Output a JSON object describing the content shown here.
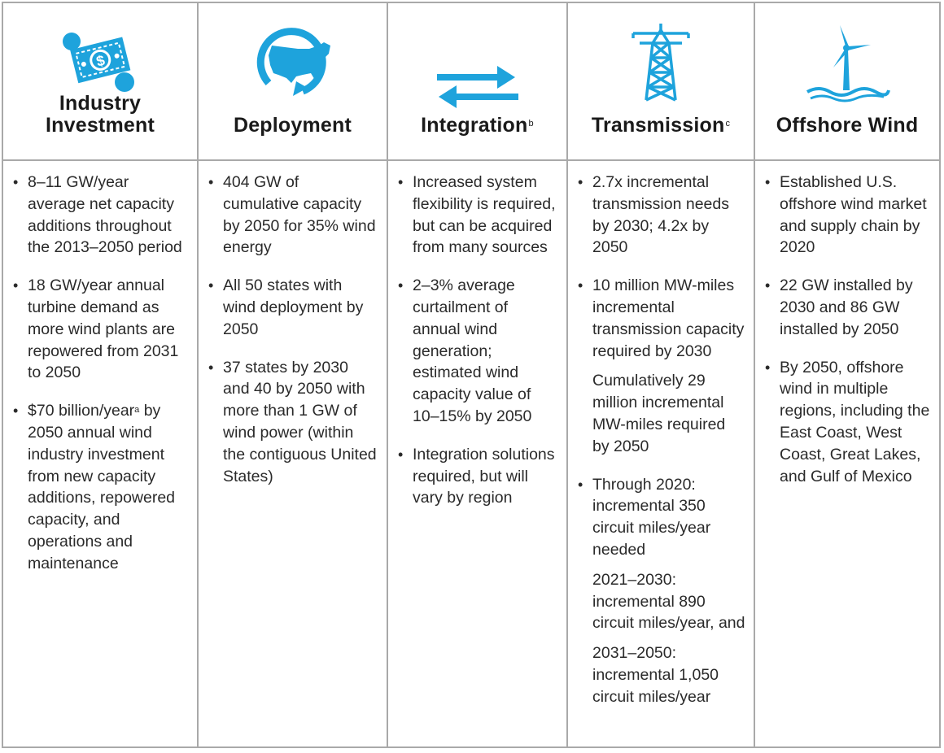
{
  "colors": {
    "accent": "#1ea3dc",
    "border": "#a9a9a9",
    "text": "#2a2a2a"
  },
  "columns": [
    {
      "icon": "money-icon",
      "title": "Industry Investment",
      "title_line1": "Industry",
      "title_line2": "Investment",
      "superscript": "",
      "items": [
        {
          "text": "8–11 GW/year average net capacity additions throughout the 2013–2050 period"
        },
        {
          "text": "18 GW/year annual turbine demand as more wind plants are repowered from 2031 to 2050"
        },
        {
          "pre": "$70 billion/year",
          "sup": "a",
          "text": " by 2050 annual wind industry investment from new capacity additions, repowered capacity, and operations and maintenance"
        }
      ]
    },
    {
      "icon": "us-map-icon",
      "title": "Deployment",
      "superscript": "",
      "items": [
        {
          "text": "404 GW of cumulative capacity by 2050 for 35% wind energy"
        },
        {
          "text": "All 50 states with wind deployment by 2050"
        },
        {
          "text": "37 states by 2030 and 40 by 2050 with more than 1 GW of wind power (within the contiguous United States)"
        }
      ]
    },
    {
      "icon": "two-way-arrows-icon",
      "title": "Integration",
      "superscript": "b",
      "items": [
        {
          "text": "Increased system flexibility is required, but can be acquired from many sources"
        },
        {
          "text": "2–3% average curtailment of annual wind generation; estimated wind capacity value of 10–15% by 2050"
        },
        {
          "text": "Integration solutions required, but will vary by region"
        }
      ]
    },
    {
      "icon": "transmission-tower-icon",
      "title": "Transmission",
      "superscript": "c",
      "items": [
        {
          "text": "2.7x incremental transmission needs by 2030; 4.2x by 2050"
        },
        {
          "text": "10 million MW-miles incremental transmission capacity required by 2030",
          "sub": "Cumulatively 29 million incremental MW-miles required by 2050"
        },
        {
          "text": "Through 2020: incremental 350 circuit miles/year needed",
          "sub": "2021–2030: incremental 890 circuit miles/year, and",
          "sub2": "2031–2050: incremental 1,050 circuit miles/year"
        }
      ]
    },
    {
      "icon": "offshore-wind-turbine-icon",
      "title": "Offshore Wind",
      "superscript": "",
      "items": [
        {
          "text": "Established U.S. offshore wind market and supply chain by 2020"
        },
        {
          "text": "22 GW installed by 2030 and 86 GW installed by 2050"
        },
        {
          "text": "By 2050, offshore wind in multiple regions, including the East Coast, West Coast, Great Lakes, and Gulf of Mexico"
        }
      ]
    }
  ]
}
